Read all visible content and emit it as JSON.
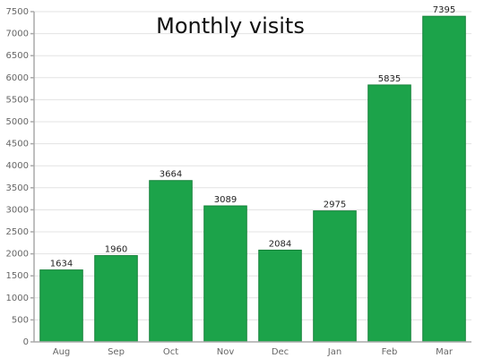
{
  "chart_data": {
    "type": "bar",
    "title": "Monthly visits",
    "categories": [
      "Aug",
      "Sep",
      "Oct",
      "Nov",
      "Dec",
      "Jan",
      "Feb",
      "Mar"
    ],
    "values": [
      1634,
      1960,
      3664,
      3089,
      2084,
      2975,
      5835,
      7395
    ],
    "color": "#1ca34a",
    "ylim": [
      0,
      7500
    ],
    "yticks": [
      0,
      500,
      1000,
      1500,
      2000,
      2500,
      3000,
      3500,
      4000,
      4500,
      5000,
      5500,
      6000,
      6500,
      7000,
      7500
    ],
    "grid": true
  }
}
